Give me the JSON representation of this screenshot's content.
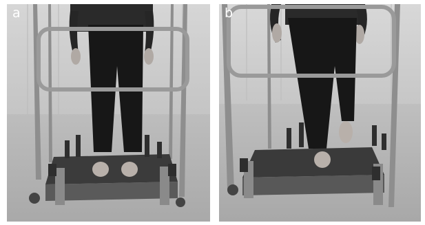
{
  "panels": [
    {
      "id": "a",
      "label": "a"
    },
    {
      "id": "b",
      "label": "b"
    }
  ],
  "style": {
    "palette": "grayscale",
    "background": "#ffffff"
  }
}
